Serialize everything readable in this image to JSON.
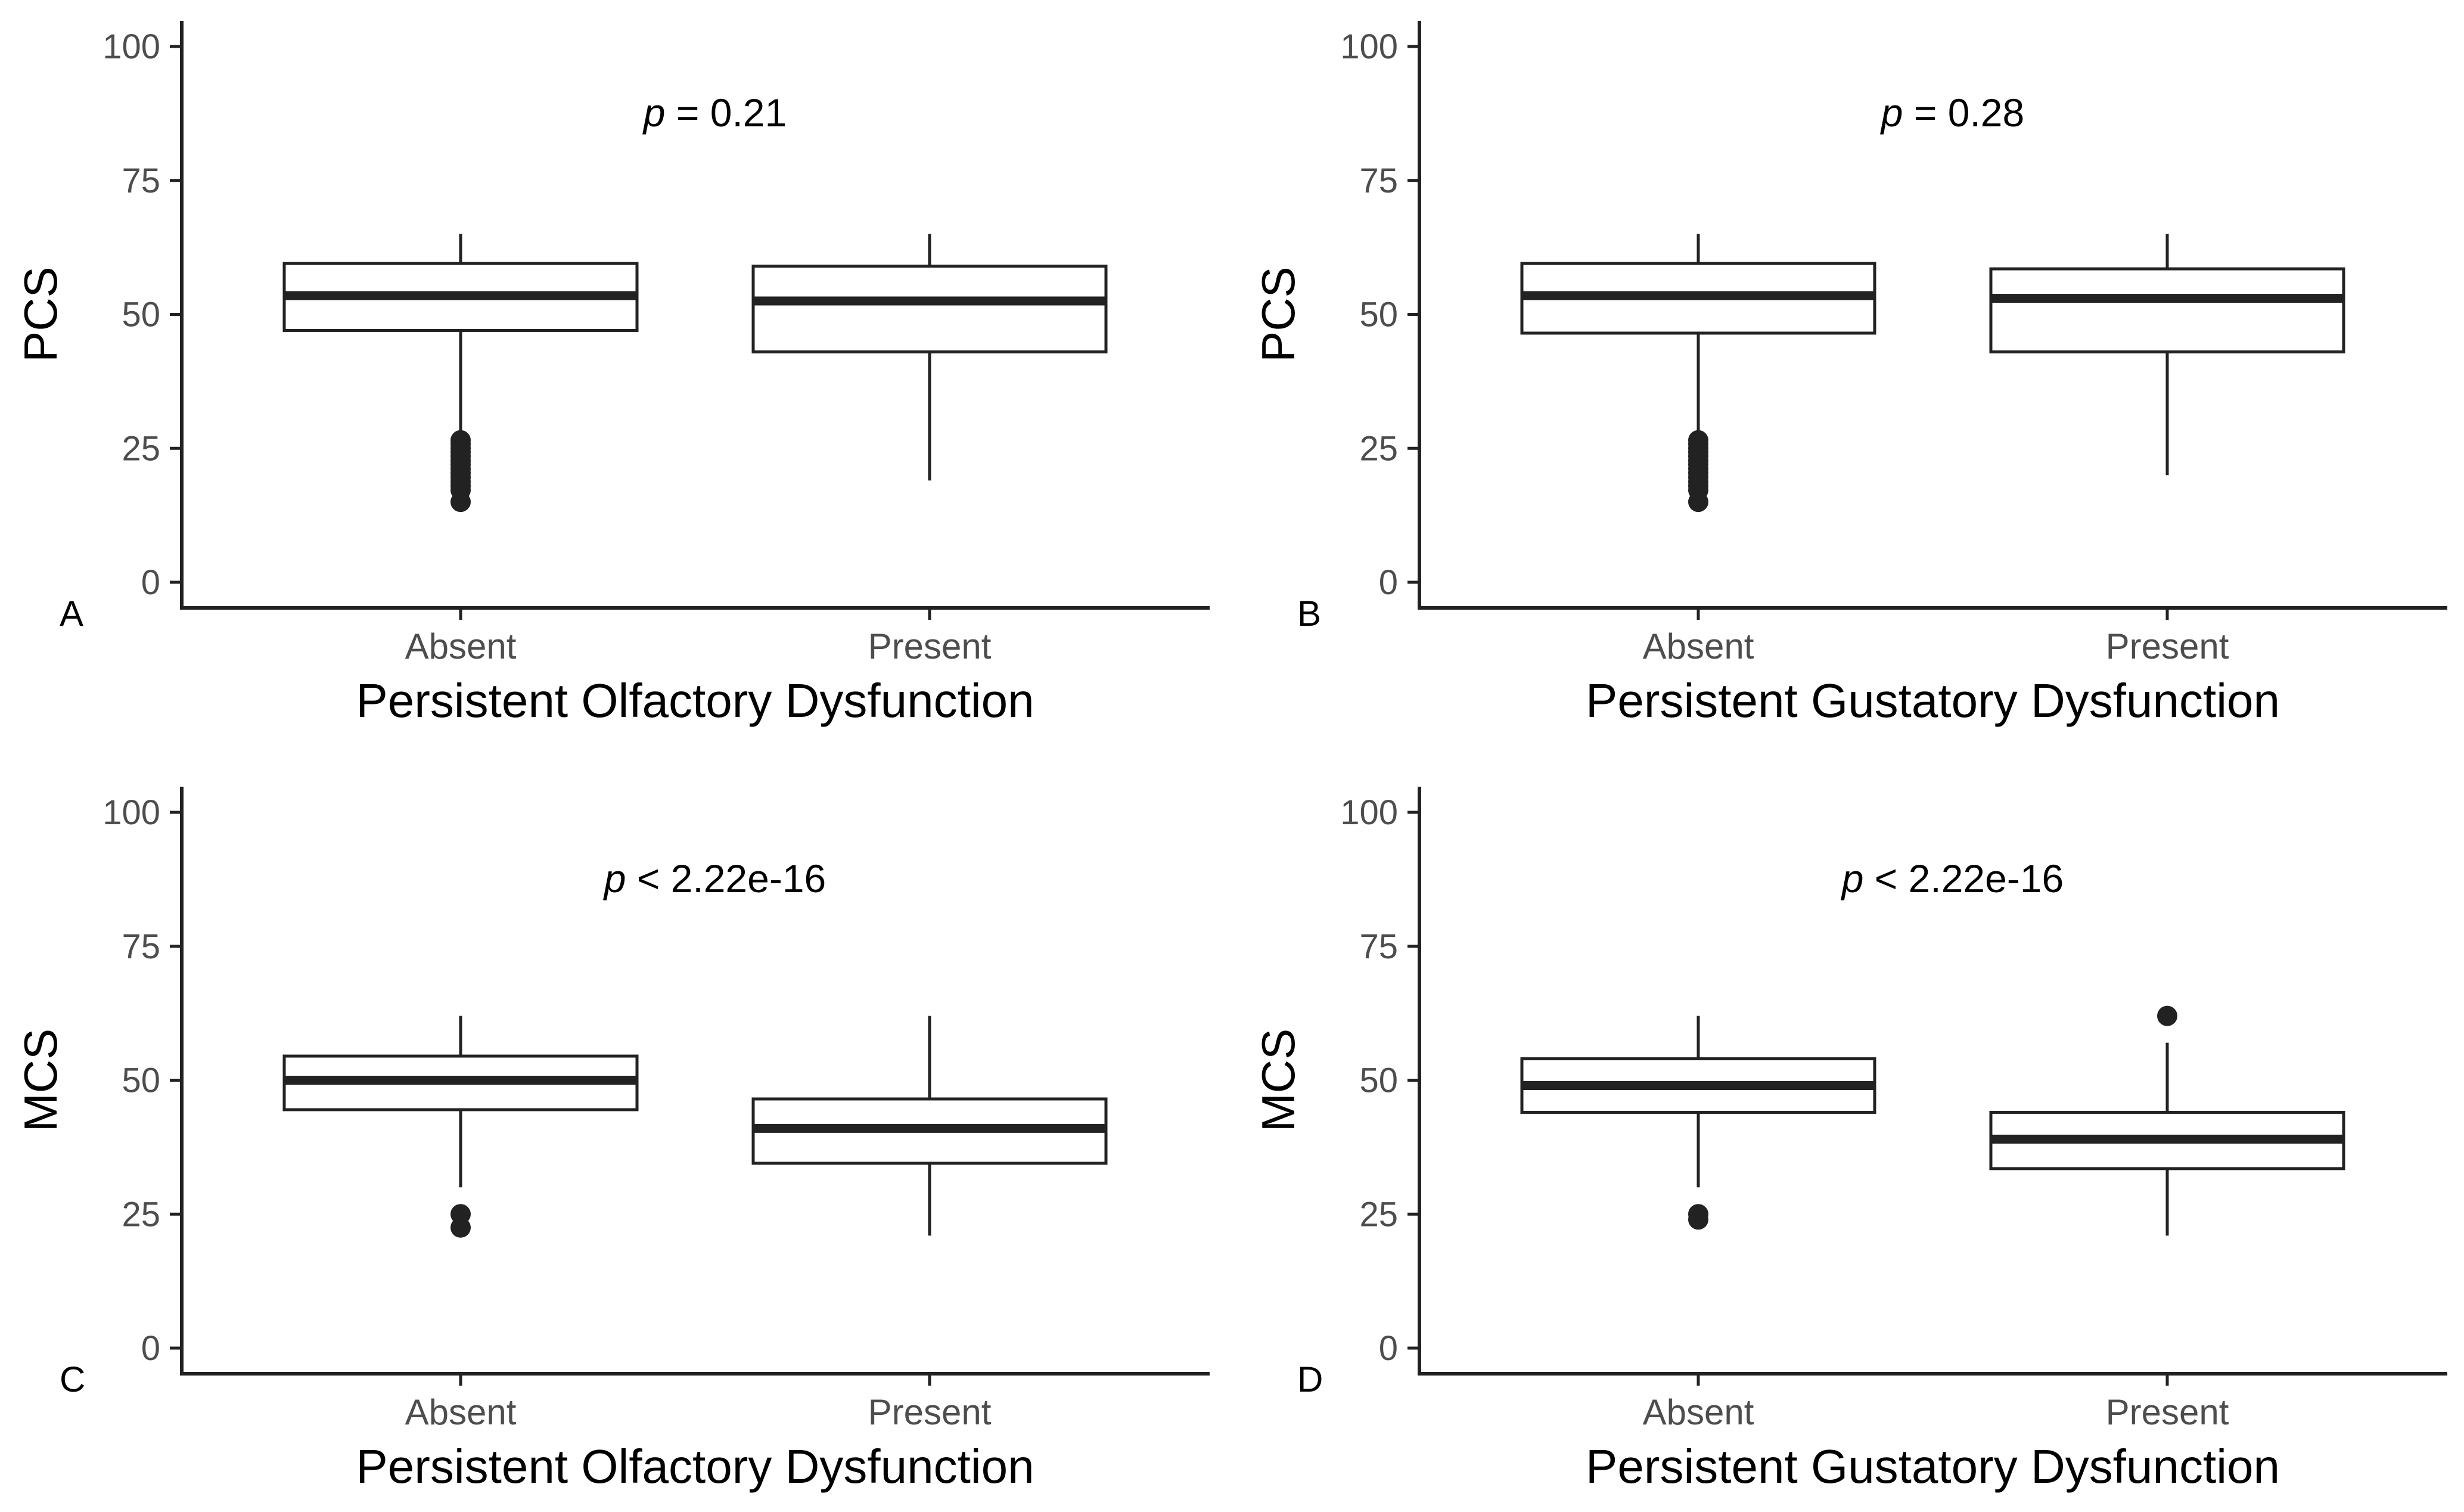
{
  "chart_data": [
    {
      "type": "box",
      "panel_label": "A",
      "ylabel": "PCS",
      "xlabel": "Persistent Olfactory Dysfunction",
      "p_symbol": "p",
      "p_text": " = 0.21",
      "ylim": [
        0,
        100
      ],
      "yticks": [
        0,
        25,
        50,
        75,
        100
      ],
      "grid": false,
      "boxes": [
        {
          "name": "Absent",
          "min": 26.5,
          "q1": 47,
          "median": 53.5,
          "q3": 59.5,
          "max": 65,
          "outliers": [
            26.5,
            25.8,
            25,
            24.3,
            23.5,
            22.7,
            22,
            21.2,
            20.4,
            19.6,
            18.8,
            18,
            17.2,
            15
          ]
        },
        {
          "name": "Present",
          "min": 19,
          "q1": 43,
          "median": 52.5,
          "q3": 59,
          "max": 65,
          "outliers": []
        }
      ]
    },
    {
      "type": "box",
      "panel_label": "B",
      "ylabel": "PCS",
      "xlabel": "Persistent Gustatory Dysfunction",
      "p_symbol": "p",
      "p_text": " = 0.28",
      "ylim": [
        0,
        100
      ],
      "yticks": [
        0,
        25,
        50,
        75,
        100
      ],
      "grid": false,
      "boxes": [
        {
          "name": "Absent",
          "min": 26.5,
          "q1": 46.5,
          "median": 53.5,
          "q3": 59.5,
          "max": 65,
          "outliers": [
            26.5,
            25.8,
            25,
            24.3,
            23.5,
            22.7,
            22,
            21.2,
            20.4,
            19.6,
            18.8,
            18,
            17.2,
            15
          ]
        },
        {
          "name": "Present",
          "min": 20,
          "q1": 43,
          "median": 53,
          "q3": 58.5,
          "max": 65,
          "outliers": []
        }
      ]
    },
    {
      "type": "box",
      "panel_label": "C",
      "ylabel": "MCS",
      "xlabel": "Persistent Olfactory Dysfunction",
      "p_symbol": "p",
      "p_text": " < 2.22e-16",
      "ylim": [
        0,
        100
      ],
      "yticks": [
        0,
        25,
        50,
        75,
        100
      ],
      "grid": false,
      "boxes": [
        {
          "name": "Absent",
          "min": 30,
          "q1": 44.5,
          "median": 50,
          "q3": 54.5,
          "max": 62,
          "outliers": [
            25,
            22.5
          ]
        },
        {
          "name": "Present",
          "min": 21,
          "q1": 34.5,
          "median": 41,
          "q3": 46.5,
          "max": 62,
          "outliers": []
        }
      ]
    },
    {
      "type": "box",
      "panel_label": "D",
      "ylabel": "MCS",
      "xlabel": "Persistent Gustatory Dysfunction",
      "p_symbol": "p",
      "p_text": " < 2.22e-16",
      "ylim": [
        0,
        100
      ],
      "yticks": [
        0,
        25,
        50,
        75,
        100
      ],
      "grid": false,
      "boxes": [
        {
          "name": "Absent",
          "min": 30,
          "q1": 44,
          "median": 49,
          "q3": 54,
          "max": 62,
          "outliers": [
            25,
            24
          ]
        },
        {
          "name": "Present",
          "min": 21,
          "q1": 33.5,
          "median": 39,
          "q3": 44,
          "max": 57,
          "outliers": [
            62
          ]
        }
      ]
    }
  ]
}
